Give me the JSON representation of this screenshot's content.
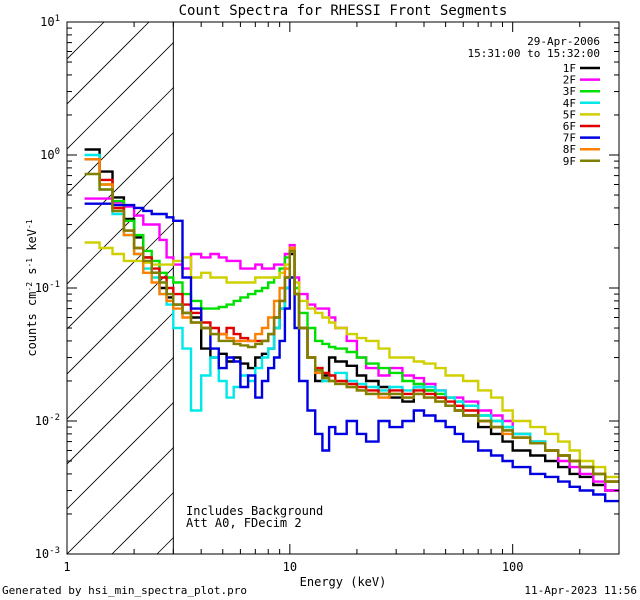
{
  "chart_data": {
    "type": "line",
    "title": "Count Spectra for RHESSI Front Segments",
    "xlabel": "Energy (keV)",
    "ylabel": "counts cm-2 s-1 keV-1",
    "xscale": "log",
    "yscale": "log",
    "xlim": [
      1,
      300
    ],
    "ylim": [
      0.001,
      10
    ],
    "x_ticks": [
      {
        "value": 1,
        "label": "1"
      },
      {
        "value": 10,
        "label": "10"
      },
      {
        "value": 100,
        "label": "100"
      }
    ],
    "y_ticks": [
      {
        "value": 0.001,
        "base": "10",
        "exp": "-3"
      },
      {
        "value": 0.01,
        "base": "10",
        "exp": "-2"
      },
      {
        "value": 0.1,
        "base": "10",
        "exp": "-1"
      },
      {
        "value": 1,
        "base": "10",
        "exp": "0"
      },
      {
        "value": 10,
        "base": "10",
        "exp": "1"
      }
    ],
    "date": "29-Apr-2006",
    "time_range": "15:31:00 to 15:32:00",
    "notes": [
      "Includes Background",
      "Att A0, FDecim 2"
    ],
    "hatched_below_keV": 3,
    "energy_bins_keV": [
      1.2,
      1.4,
      1.6,
      1.8,
      2.0,
      2.2,
      2.4,
      2.6,
      2.8,
      3.0,
      3.3,
      3.6,
      4.0,
      4.4,
      4.8,
      5.2,
      5.6,
      6.0,
      6.5,
      7.0,
      7.5,
      8.0,
      8.5,
      9.0,
      9.5,
      10.0,
      10.5,
      11.0,
      12.0,
      13.0,
      14.0,
      15.0,
      16.0,
      18.0,
      20.0,
      22.0,
      25.0,
      28.0,
      32.0,
      36.0,
      40.0,
      45.0,
      50.0,
      55.0,
      60.0,
      70.0,
      80.0,
      90.0,
      100.0,
      120.0,
      140.0,
      160.0,
      180.0,
      200.0,
      230.0,
      260.0,
      300.0
    ],
    "series": [
      {
        "name": "1F",
        "color": "#000000",
        "values": [
          1.1,
          0.75,
          0.48,
          0.33,
          0.24,
          0.17,
          0.13,
          0.1,
          0.085,
          0.075,
          0.065,
          0.06,
          0.035,
          0.03,
          0.032,
          0.028,
          0.03,
          0.027,
          0.025,
          0.03,
          0.032,
          0.035,
          0.05,
          0.07,
          0.1,
          0.18,
          0.09,
          0.05,
          0.03,
          0.02,
          0.022,
          0.03,
          0.028,
          0.026,
          0.022,
          0.02,
          0.018,
          0.015,
          0.014,
          0.018,
          0.017,
          0.015,
          0.013,
          0.012,
          0.011,
          0.009,
          0.008,
          0.007,
          0.006,
          0.0055,
          0.005,
          0.0045,
          0.004,
          0.0038,
          0.0033,
          0.003
        ]
      },
      {
        "name": "2F",
        "color": "#ff00ff",
        "values": [
          0.47,
          0.47,
          0.44,
          0.41,
          0.35,
          0.3,
          0.3,
          0.23,
          0.17,
          0.15,
          0.14,
          0.18,
          0.17,
          0.18,
          0.17,
          0.16,
          0.16,
          0.14,
          0.14,
          0.15,
          0.14,
          0.14,
          0.15,
          0.15,
          0.18,
          0.21,
          0.12,
          0.09,
          0.075,
          0.07,
          0.07,
          0.06,
          0.05,
          0.04,
          0.03,
          0.025,
          0.022,
          0.025,
          0.022,
          0.021,
          0.019,
          0.017,
          0.015,
          0.015,
          0.014,
          0.012,
          0.011,
          0.01,
          0.008,
          0.007,
          0.006,
          0.005,
          0.0045,
          0.004,
          0.0035,
          0.003
        ]
      },
      {
        "name": "3F",
        "color": "#00e000",
        "values": [
          0.93,
          0.6,
          0.45,
          0.32,
          0.25,
          0.19,
          0.16,
          0.13,
          0.12,
          0.11,
          0.09,
          0.08,
          0.07,
          0.07,
          0.072,
          0.075,
          0.08,
          0.085,
          0.09,
          0.095,
          0.1,
          0.11,
          0.12,
          0.14,
          0.17,
          0.2,
          0.1,
          0.065,
          0.05,
          0.04,
          0.038,
          0.036,
          0.035,
          0.033,
          0.03,
          0.027,
          0.025,
          0.023,
          0.02,
          0.019,
          0.017,
          0.016,
          0.015,
          0.014,
          0.013,
          0.011,
          0.01,
          0.009,
          0.008,
          0.007,
          0.006,
          0.0055,
          0.005,
          0.0045,
          0.004,
          0.0035
        ]
      },
      {
        "name": "4F",
        "color": "#00e8e8",
        "values": [
          1.0,
          0.55,
          0.36,
          0.25,
          0.18,
          0.14,
          0.12,
          0.09,
          0.075,
          0.05,
          0.035,
          0.012,
          0.022,
          0.03,
          0.02,
          0.015,
          0.018,
          0.022,
          0.02,
          0.025,
          0.03,
          0.035,
          0.05,
          0.07,
          0.1,
          0.19,
          0.09,
          0.05,
          0.03,
          0.025,
          0.02,
          0.022,
          0.023,
          0.02,
          0.019,
          0.018,
          0.017,
          0.018,
          0.017,
          0.018,
          0.018,
          0.017,
          0.015,
          0.014,
          0.013,
          0.011,
          0.01,
          0.009,
          0.008,
          0.007,
          0.006,
          0.0055,
          0.005,
          0.0045,
          0.004,
          0.0035
        ]
      },
      {
        "name": "5F",
        "color": "#d0d000",
        "values": [
          0.22,
          0.2,
          0.18,
          0.16,
          0.16,
          0.155,
          0.15,
          0.15,
          0.15,
          0.16,
          0.17,
          0.12,
          0.13,
          0.12,
          0.12,
          0.11,
          0.11,
          0.11,
          0.11,
          0.12,
          0.12,
          0.12,
          0.12,
          0.13,
          0.15,
          0.2,
          0.11,
          0.08,
          0.07,
          0.065,
          0.06,
          0.055,
          0.05,
          0.045,
          0.042,
          0.04,
          0.035,
          0.03,
          0.03,
          0.028,
          0.027,
          0.025,
          0.022,
          0.022,
          0.02,
          0.017,
          0.015,
          0.012,
          0.01,
          0.009,
          0.008,
          0.007,
          0.006,
          0.005,
          0.0045,
          0.0038
        ]
      },
      {
        "name": "6F",
        "color": "#e00000",
        "values": [
          0.93,
          0.65,
          0.4,
          0.27,
          0.2,
          0.17,
          0.14,
          0.12,
          0.1,
          0.09,
          0.075,
          0.065,
          0.055,
          0.05,
          0.045,
          0.05,
          0.045,
          0.042,
          0.04,
          0.04,
          0.04,
          0.045,
          0.06,
          0.08,
          0.12,
          0.19,
          0.09,
          0.05,
          0.03,
          0.025,
          0.023,
          0.022,
          0.02,
          0.019,
          0.018,
          0.017,
          0.016,
          0.017,
          0.016,
          0.017,
          0.016,
          0.015,
          0.014,
          0.013,
          0.012,
          0.01,
          0.009,
          0.0085,
          0.0075,
          0.0068,
          0.006,
          0.0055,
          0.005,
          0.0045,
          0.004,
          0.0035
        ]
      },
      {
        "name": "7F",
        "color": "#0000e0",
        "values": [
          0.43,
          0.43,
          0.42,
          0.42,
          0.4,
          0.38,
          0.36,
          0.36,
          0.34,
          0.32,
          0.12,
          0.07,
          0.05,
          0.035,
          0.025,
          0.03,
          0.028,
          0.018,
          0.022,
          0.015,
          0.02,
          0.025,
          0.03,
          0.04,
          0.07,
          0.12,
          0.05,
          0.02,
          0.012,
          0.008,
          0.006,
          0.009,
          0.008,
          0.01,
          0.008,
          0.007,
          0.01,
          0.009,
          0.01,
          0.012,
          0.011,
          0.01,
          0.009,
          0.008,
          0.007,
          0.006,
          0.0055,
          0.005,
          0.0045,
          0.004,
          0.0038,
          0.0035,
          0.0032,
          0.003,
          0.0028,
          0.0025
        ]
      },
      {
        "name": "8F",
        "color": "#ff8000",
        "values": [
          0.93,
          0.6,
          0.38,
          0.25,
          0.18,
          0.13,
          0.11,
          0.09,
          0.08,
          0.07,
          0.06,
          0.055,
          0.05,
          0.045,
          0.045,
          0.042,
          0.04,
          0.04,
          0.04,
          0.045,
          0.05,
          0.06,
          0.08,
          0.1,
          0.14,
          0.2,
          0.09,
          0.05,
          0.03,
          0.023,
          0.021,
          0.02,
          0.019,
          0.018,
          0.017,
          0.016,
          0.015,
          0.016,
          0.015,
          0.016,
          0.015,
          0.014,
          0.013,
          0.012,
          0.011,
          0.01,
          0.009,
          0.008,
          0.0075,
          0.0068,
          0.006,
          0.0055,
          0.005,
          0.0045,
          0.004,
          0.0035
        ]
      },
      {
        "name": "9F",
        "color": "#808000",
        "values": [
          0.72,
          0.55,
          0.38,
          0.27,
          0.2,
          0.16,
          0.13,
          0.11,
          0.09,
          0.075,
          0.065,
          0.055,
          0.05,
          0.045,
          0.04,
          0.04,
          0.038,
          0.037,
          0.036,
          0.038,
          0.04,
          0.045,
          0.06,
          0.08,
          0.12,
          0.19,
          0.09,
          0.05,
          0.03,
          0.024,
          0.021,
          0.02,
          0.019,
          0.018,
          0.017,
          0.016,
          0.016,
          0.016,
          0.015,
          0.016,
          0.015,
          0.014,
          0.013,
          0.012,
          0.011,
          0.01,
          0.009,
          0.0085,
          0.0075,
          0.0068,
          0.006,
          0.0055,
          0.005,
          0.0045,
          0.004,
          0.0035
        ]
      }
    ]
  },
  "footer": {
    "left": "Generated by hsi_min_spectra_plot.pro",
    "right": "11-Apr-2023 11:56"
  }
}
